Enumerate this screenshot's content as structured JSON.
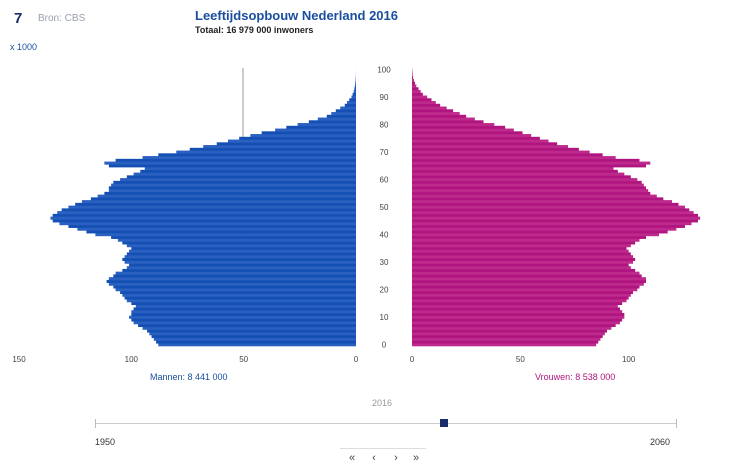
{
  "header": {
    "logo": "7",
    "source": "Bron: CBS",
    "title": "Leeftijdsopbouw Nederland 2016",
    "subtitle": "Totaal: 16 979 000 inwoners",
    "unit": "x 1000"
  },
  "chart_data": {
    "type": "bar",
    "subtype": "population-pyramid",
    "title": "Leeftijdsopbouw Nederland 2016",
    "subtitle": "Totaal: 16 979 000 inwoners",
    "unit": "x 1000",
    "age_ticks": [
      0,
      10,
      20,
      30,
      40,
      50,
      60,
      70,
      80,
      90,
      100
    ],
    "male_axis_ticks": [
      150,
      100,
      50,
      0
    ],
    "female_axis_ticks": [
      0,
      50,
      100
    ],
    "xlim": [
      0,
      150
    ],
    "colors": {
      "men": "#1450b4",
      "women": "#b0157f"
    },
    "series": [
      {
        "name": "Mannen",
        "label": "Mannen: 8 441 000",
        "values": [
          88,
          89,
          90,
          91,
          92,
          93,
          95,
          97,
          99,
          100,
          101,
          100,
          100,
          99,
          98,
          100,
          102,
          103,
          104,
          105,
          107,
          108,
          110,
          111,
          110,
          108,
          107,
          104,
          102,
          101,
          103,
          104,
          103,
          102,
          101,
          100,
          102,
          104,
          106,
          109,
          116,
          120,
          124,
          128,
          132,
          135,
          136,
          135,
          133,
          131,
          128,
          125,
          122,
          118,
          115,
          112,
          110,
          110,
          109,
          108,
          105,
          102,
          99,
          96,
          94,
          110,
          112,
          107,
          95,
          88,
          80,
          74,
          68,
          62,
          57,
          52,
          47,
          42,
          36,
          31,
          26,
          21,
          17,
          13,
          11,
          9,
          7,
          5,
          4,
          3,
          2,
          1.5,
          1,
          0.7,
          0.5,
          0.3,
          0.2,
          0.1,
          0.05,
          0.02,
          0.01
        ]
      },
      {
        "name": "Vrouwen",
        "label": "Vrouwen: 8 538 000",
        "values": [
          85,
          86,
          87,
          88,
          89,
          90,
          92,
          94,
          96,
          97,
          98,
          98,
          97,
          96,
          95,
          97,
          99,
          100,
          101,
          102,
          104,
          105,
          107,
          108,
          108,
          106,
          105,
          103,
          101,
          100,
          102,
          103,
          102,
          101,
          100,
          99,
          101,
          103,
          105,
          108,
          114,
          118,
          122,
          126,
          129,
          132,
          133,
          132,
          130,
          128,
          126,
          123,
          120,
          116,
          113,
          110,
          109,
          108,
          107,
          106,
          104,
          101,
          98,
          95,
          93,
          108,
          110,
          105,
          94,
          88,
          82,
          77,
          72,
          67,
          63,
          59,
          55,
          51,
          47,
          43,
          38,
          33,
          29,
          25,
          22,
          19,
          16,
          13,
          11,
          9,
          7,
          5,
          4,
          3,
          2,
          1.4,
          0.9,
          0.5,
          0.3,
          0.2,
          0.1
        ]
      }
    ]
  },
  "footer": {
    "men_label": "Mannen: 8 441 000",
    "women_label": "Vrouwen: 8 538 000",
    "year_current": "2016",
    "year_start": "1950",
    "year_end": "2060",
    "slider_position": 0.6,
    "controls": [
      "first-icon",
      "prev-icon",
      "next-icon",
      "last-icon"
    ]
  }
}
